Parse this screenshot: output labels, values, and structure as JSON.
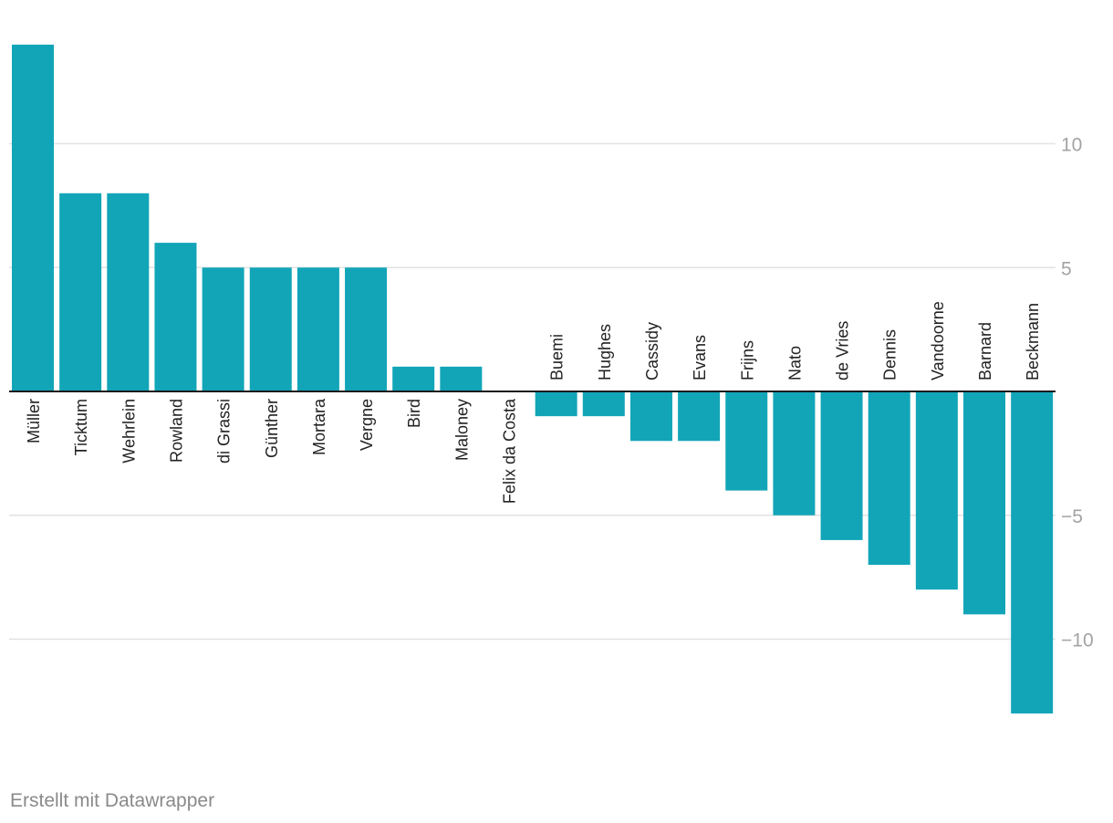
{
  "chart_data": {
    "type": "bar",
    "categories": [
      "Müller",
      "Ticktum",
      "Wehrlein",
      "Rowland",
      "di Grassi",
      "Günther",
      "Mortara",
      "Vergne",
      "Bird",
      "Maloney",
      "Felix da Costa",
      "Buemi",
      "Hughes",
      "Cassidy",
      "Evans",
      "Frijns",
      "Nato",
      "de Vries",
      "Dennis",
      "Vandoorne",
      "Barnard",
      "Beckmann"
    ],
    "values": [
      14,
      8,
      8,
      6,
      5,
      5,
      5,
      5,
      1,
      1,
      0,
      -1,
      -1,
      -2,
      -2,
      -4,
      -5,
      -6,
      -7,
      -8,
      -9,
      -13
    ],
    "y_ticks": [
      10,
      5,
      -5,
      -10
    ],
    "y_tick_labels": [
      "10",
      "5",
      "−5",
      "−10"
    ],
    "ylim": [
      -13,
      14
    ],
    "grid": true,
    "bar_color": "#12a5b8",
    "title": "",
    "xlabel": "",
    "ylabel": ""
  },
  "footer": {
    "credit": "Erstellt mit Datawrapper"
  }
}
